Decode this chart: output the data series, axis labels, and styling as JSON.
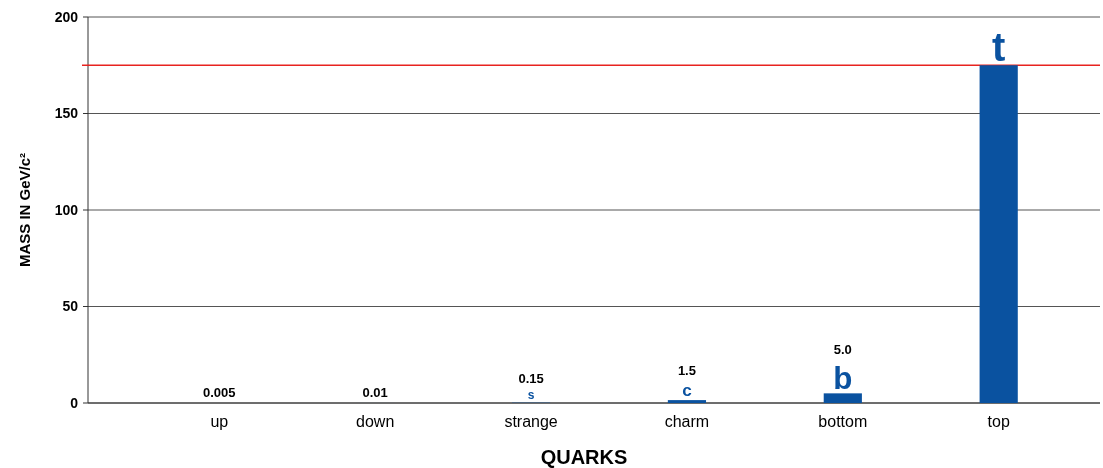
{
  "chart_data": {
    "type": "bar",
    "xlabel": "QUARKS",
    "ylabel": "MASS IN GeV/c²",
    "categories": [
      "up",
      "down",
      "strange",
      "charm",
      "bottom",
      "top"
    ],
    "values": [
      0.005,
      0.01,
      0.15,
      1.5,
      5.0,
      175
    ],
    "value_labels": [
      "0.005",
      "0.01",
      "0.15",
      "1.5",
      "5.0",
      null
    ],
    "color": "#0a52a0",
    "ylim": [
      0,
      200
    ],
    "yticks": [
      0,
      50,
      100,
      150,
      200
    ],
    "grid": "y",
    "ref_lines": [
      {
        "axis": "y",
        "value": 175,
        "color": "#e8231f"
      }
    ],
    "annotations": [
      {
        "text": "s",
        "x": "strange",
        "y": 0.15
      },
      {
        "text": "c",
        "x": "charm",
        "y": 1.5
      },
      {
        "text": "b",
        "x": "bottom",
        "y": 5.0
      },
      {
        "text": "t",
        "x": "top",
        "y": 175
      }
    ]
  }
}
